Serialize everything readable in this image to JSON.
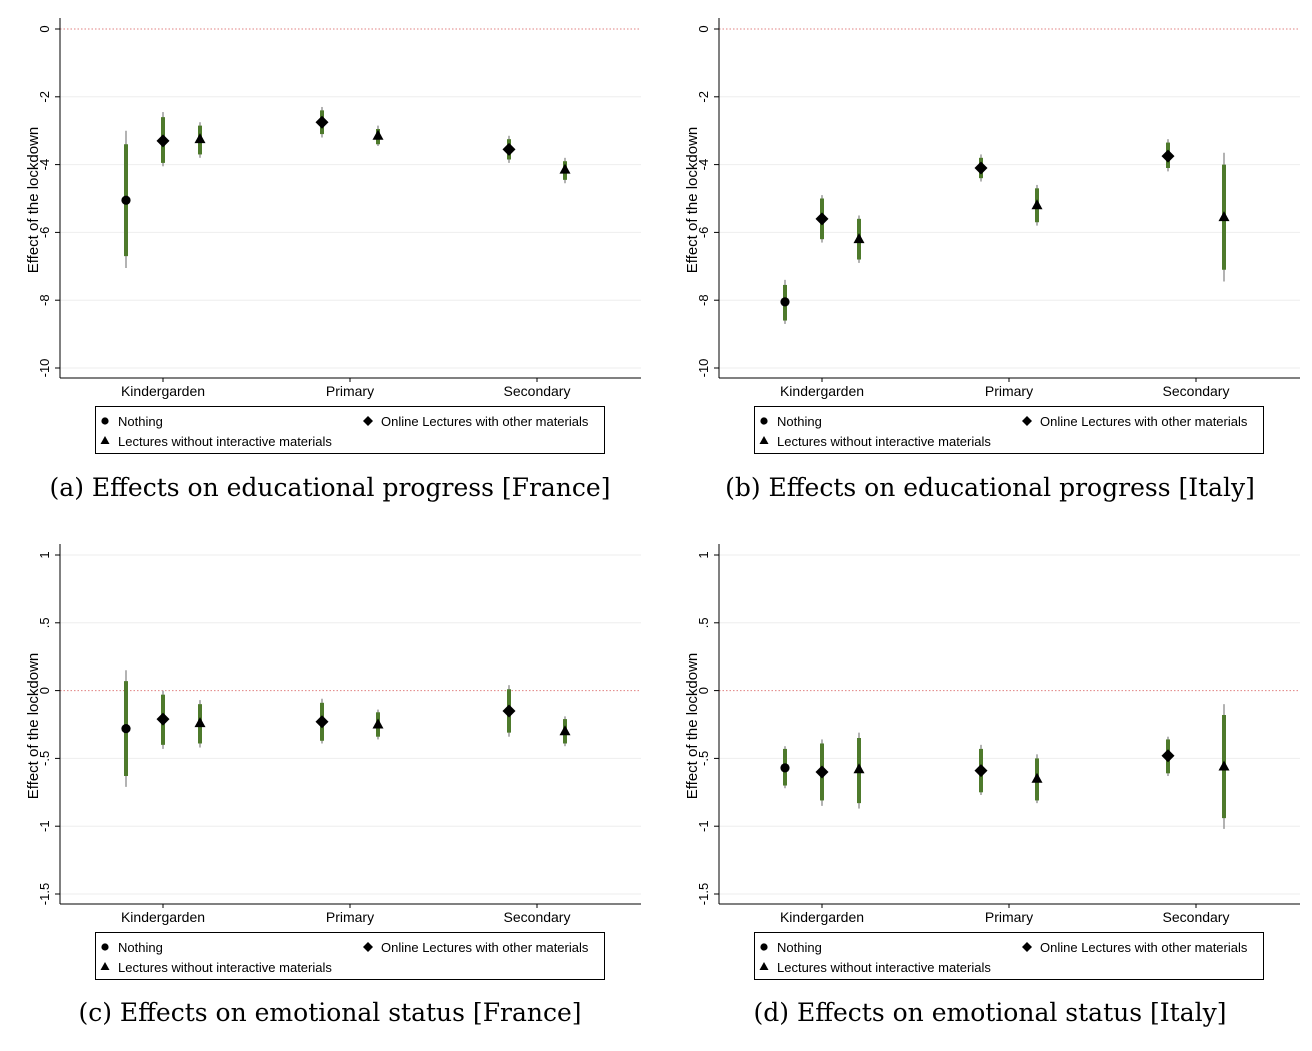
{
  "legend": {
    "nothing": "Nothing",
    "online": "Online Lectures with other materials",
    "lectures": "Lectures without interactive materials"
  },
  "colors": {
    "ci_outer": "#8a8a8a",
    "ci_inner": "#4e7a2c",
    "ref_line": "#e08080",
    "grid": "#eeeeee"
  },
  "chart_data": [
    {
      "type": "scatter",
      "caption": "(a) Effects on educational progress [France]",
      "ylabel": "Effect of the lockdown",
      "ylim": [
        -10,
        0
      ],
      "yticks": [
        0,
        -2,
        -4,
        -6,
        -8,
        -10
      ],
      "ytick_labels": [
        "0",
        "-2",
        "-4",
        "-6",
        "-8",
        "-10"
      ],
      "categories": [
        "Kindergarden",
        "Primary",
        "Secondary"
      ],
      "reference_line": 0,
      "series": [
        {
          "name": "Nothing",
          "marker": "circle",
          "values": [
            -5.05,
            null,
            null
          ],
          "ci_outer": [
            [
              -7.05,
              -3.0
            ],
            null,
            null
          ],
          "ci_inner": [
            [
              -6.7,
              -3.4
            ],
            null,
            null
          ]
        },
        {
          "name": "Online Lectures with other materials",
          "marker": "diamond",
          "values": [
            -3.3,
            -2.75,
            -3.55
          ],
          "ci_outer": [
            [
              -4.05,
              -2.45
            ],
            [
              -3.2,
              -2.3
            ],
            [
              -3.95,
              -3.15
            ]
          ],
          "ci_inner": [
            [
              -3.95,
              -2.6
            ],
            [
              -3.1,
              -2.4
            ],
            [
              -3.85,
              -3.25
            ]
          ]
        },
        {
          "name": "Lectures without interactive materials",
          "marker": "triangle",
          "values": [
            -3.25,
            -3.15,
            -4.15
          ],
          "ci_outer": [
            [
              -3.8,
              -2.75
            ],
            [
              -3.45,
              -2.85
            ],
            [
              -4.55,
              -3.8
            ]
          ],
          "ci_inner": [
            [
              -3.7,
              -2.85
            ],
            [
              -3.4,
              -2.95
            ],
            [
              -4.45,
              -3.9
            ]
          ]
        }
      ]
    },
    {
      "type": "scatter",
      "caption": "(b) Effects on educational progress [Italy]",
      "ylabel": "Effect of the lockdown",
      "ylim": [
        -10,
        0
      ],
      "yticks": [
        0,
        -2,
        -4,
        -6,
        -8,
        -10
      ],
      "ytick_labels": [
        "0",
        "-2",
        "-4",
        "-6",
        "-8",
        "-10"
      ],
      "categories": [
        "Kindergarden",
        "Primary",
        "Secondary"
      ],
      "reference_line": 0,
      "series": [
        {
          "name": "Nothing",
          "marker": "circle",
          "values": [
            -8.05,
            null,
            null
          ],
          "ci_outer": [
            [
              -8.7,
              -7.4
            ],
            null,
            null
          ],
          "ci_inner": [
            [
              -8.6,
              -7.55
            ],
            null,
            null
          ]
        },
        {
          "name": "Online Lectures with other materials",
          "marker": "diamond",
          "values": [
            -5.6,
            -4.1,
            -3.75
          ],
          "ci_outer": [
            [
              -6.3,
              -4.9
            ],
            [
              -4.5,
              -3.7
            ],
            [
              -4.2,
              -3.25
            ]
          ],
          "ci_inner": [
            [
              -6.2,
              -5.0
            ],
            [
              -4.4,
              -3.8
            ],
            [
              -4.1,
              -3.35
            ]
          ]
        },
        {
          "name": "Lectures without interactive materials",
          "marker": "triangle",
          "values": [
            -6.2,
            -5.2,
            -5.55
          ],
          "ci_outer": [
            [
              -6.9,
              -5.5
            ],
            [
              -5.8,
              -4.6
            ],
            [
              -7.45,
              -3.65
            ]
          ],
          "ci_inner": [
            [
              -6.8,
              -5.6
            ],
            [
              -5.7,
              -4.7
            ],
            [
              -7.1,
              -4.0
            ]
          ]
        }
      ]
    },
    {
      "type": "scatter",
      "caption": "(c) Effects on emotional status [France]",
      "ylabel": "Effect of the lockdown",
      "ylim": [
        -1.5,
        1
      ],
      "yticks": [
        1,
        0.5,
        0,
        -0.5,
        -1,
        -1.5
      ],
      "ytick_labels": [
        "1",
        ".5",
        "0",
        "-.5",
        "-1",
        "-1.5"
      ],
      "categories": [
        "Kindergarden",
        "Primary",
        "Secondary"
      ],
      "reference_line": 0,
      "series": [
        {
          "name": "Nothing",
          "marker": "circle",
          "values": [
            -0.28,
            null,
            null
          ],
          "ci_outer": [
            [
              -0.71,
              0.15
            ],
            null,
            null
          ],
          "ci_inner": [
            [
              -0.63,
              0.07
            ],
            null,
            null
          ]
        },
        {
          "name": "Online Lectures with other materials",
          "marker": "diamond",
          "values": [
            -0.21,
            -0.23,
            -0.15
          ],
          "ci_outer": [
            [
              -0.43,
              0.0
            ],
            [
              -0.39,
              -0.06
            ],
            [
              -0.34,
              0.04
            ]
          ],
          "ci_inner": [
            [
              -0.4,
              -0.03
            ],
            [
              -0.37,
              -0.09
            ],
            [
              -0.31,
              0.01
            ]
          ]
        },
        {
          "name": "Lectures without interactive materials",
          "marker": "triangle",
          "values": [
            -0.24,
            -0.25,
            -0.3
          ],
          "ci_outer": [
            [
              -0.42,
              -0.07
            ],
            [
              -0.36,
              -0.14
            ],
            [
              -0.41,
              -0.19
            ]
          ],
          "ci_inner": [
            [
              -0.39,
              -0.1
            ],
            [
              -0.34,
              -0.16
            ],
            [
              -0.39,
              -0.21
            ]
          ]
        }
      ]
    },
    {
      "type": "scatter",
      "caption": "(d) Effects on emotional status [Italy]",
      "ylabel": "Effect of the lockdown",
      "ylim": [
        -1.5,
        1
      ],
      "yticks": [
        1,
        0.5,
        0,
        -0.5,
        -1,
        -1.5
      ],
      "ytick_labels": [
        "1",
        ".5",
        "0",
        "-.5",
        "-1",
        "-1.5"
      ],
      "categories": [
        "Kindergarden",
        "Primary",
        "Secondary"
      ],
      "reference_line": 0,
      "series": [
        {
          "name": "Nothing",
          "marker": "circle",
          "values": [
            -0.57,
            null,
            null
          ],
          "ci_outer": [
            [
              -0.72,
              -0.41
            ],
            null,
            null
          ],
          "ci_inner": [
            [
              -0.7,
              -0.43
            ],
            null,
            null
          ]
        },
        {
          "name": "Online Lectures with other materials",
          "marker": "diamond",
          "values": [
            -0.6,
            -0.59,
            -0.48
          ],
          "ci_outer": [
            [
              -0.85,
              -0.36
            ],
            [
              -0.77,
              -0.4
            ],
            [
              -0.63,
              -0.34
            ]
          ],
          "ci_inner": [
            [
              -0.81,
              -0.39
            ],
            [
              -0.75,
              -0.43
            ],
            [
              -0.61,
              -0.36
            ]
          ]
        },
        {
          "name": "Lectures without interactive materials",
          "marker": "triangle",
          "values": [
            -0.58,
            -0.65,
            -0.56
          ],
          "ci_outer": [
            [
              -0.87,
              -0.31
            ],
            [
              -0.83,
              -0.47
            ],
            [
              -1.02,
              -0.1
            ]
          ],
          "ci_inner": [
            [
              -0.83,
              -0.35
            ],
            [
              -0.81,
              -0.5
            ],
            [
              -0.94,
              -0.18
            ]
          ]
        }
      ]
    }
  ]
}
